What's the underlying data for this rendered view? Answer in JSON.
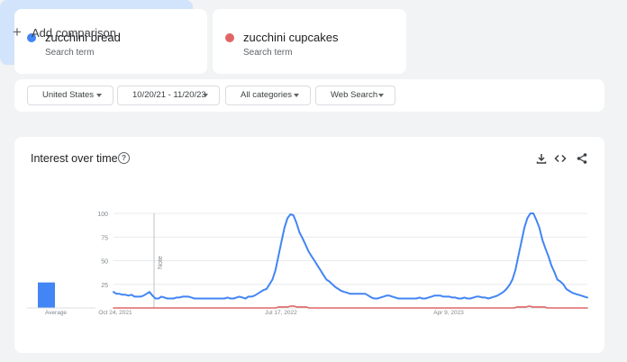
{
  "terms": [
    {
      "name": "zucchini bread",
      "sub": "Search term",
      "color": "#4285f4"
    },
    {
      "name": "zucchini cupcakes",
      "sub": "Search term",
      "color": "#db4437"
    }
  ],
  "add_comparison": {
    "icon": "plus-icon",
    "label": "Add comparison"
  },
  "filters": [
    {
      "label": "United States"
    },
    {
      "label": "10/20/21 - 11/20/23"
    },
    {
      "label": "All categories"
    },
    {
      "label": "Web Search"
    }
  ],
  "panel": {
    "title": "Interest over time",
    "help_icon": "help-icon",
    "tools": [
      "download-icon",
      "embed-icon",
      "share-icon"
    ]
  },
  "chart_data": {
    "type": "line",
    "y_ticks": [
      100,
      75,
      50,
      25
    ],
    "ylim": [
      0,
      100
    ],
    "x_labels": [
      "Oct 24, 2021",
      "Jul 17, 2022",
      "Apr 9, 2023"
    ],
    "note_label": "Note",
    "average_label": "Average",
    "average_values": [
      {
        "term": "zucchini bread",
        "value": 27
      }
    ],
    "grid": true,
    "series": [
      {
        "name": "zucchini bread",
        "color": "#4285f4",
        "values": [
          17,
          15,
          15,
          14,
          14,
          13,
          14,
          12,
          12,
          12,
          13,
          15,
          17,
          13,
          10,
          10,
          12,
          11,
          10,
          10,
          10,
          11,
          11,
          12,
          12,
          12,
          11,
          10,
          10,
          10,
          10,
          10,
          10,
          10,
          10,
          10,
          10,
          10,
          11,
          10,
          10,
          11,
          12,
          11,
          10,
          12,
          12,
          13,
          15,
          17,
          19,
          20,
          25,
          30,
          40,
          55,
          70,
          85,
          95,
          99,
          98,
          90,
          80,
          74,
          67,
          60,
          55,
          50,
          45,
          40,
          35,
          30,
          28,
          25,
          22,
          20,
          18,
          17,
          16,
          15,
          15,
          15,
          15,
          15,
          15,
          13,
          11,
          10,
          10,
          11,
          12,
          13,
          13,
          12,
          11,
          10,
          10,
          10,
          10,
          10,
          10,
          10,
          11,
          10,
          10,
          11,
          12,
          13,
          13,
          13,
          12,
          12,
          12,
          11,
          11,
          10,
          10,
          11,
          10,
          10,
          11,
          12,
          12,
          11,
          11,
          10,
          11,
          12,
          13,
          15,
          17,
          20,
          24,
          30,
          40,
          55,
          70,
          85,
          95,
          100,
          100,
          93,
          85,
          72,
          63,
          55,
          45,
          38,
          30,
          28,
          25,
          20,
          18,
          16,
          15,
          14,
          13,
          12,
          11
        ]
      },
      {
        "name": "zucchini cupcakes",
        "color": "#db4437",
        "values": [
          0,
          0,
          0,
          0,
          0,
          0,
          0,
          0,
          0,
          0,
          0,
          0,
          0,
          0,
          0,
          0,
          0,
          0,
          0,
          0,
          0,
          0,
          0,
          0,
          0,
          0,
          0,
          0,
          0,
          0,
          0,
          0,
          0,
          0,
          0,
          0,
          0,
          0,
          0,
          0,
          0,
          0,
          0,
          0,
          0,
          0,
          0,
          0,
          0,
          0,
          0,
          0,
          0,
          0,
          1,
          1,
          1,
          1,
          2,
          2,
          1,
          1,
          1,
          1,
          0,
          0,
          0,
          0,
          0,
          0,
          0,
          0,
          0,
          0,
          0,
          0,
          0,
          0,
          0,
          0,
          0,
          0,
          0,
          0,
          0,
          0,
          0,
          0,
          0,
          0,
          0,
          0,
          0,
          0,
          0,
          0,
          0,
          0,
          0,
          0,
          0,
          0,
          0,
          0,
          0,
          0,
          0,
          0,
          0,
          0,
          0,
          0,
          0,
          0,
          0,
          0,
          0,
          0,
          0,
          0,
          0,
          0,
          0,
          0,
          0,
          0,
          0,
          0,
          0,
          0,
          0,
          0,
          1,
          1,
          1,
          1,
          2,
          1,
          1,
          1,
          1,
          1,
          0,
          0,
          0,
          0,
          0,
          0,
          0,
          0,
          0,
          0,
          0,
          0,
          0,
          0
        ]
      }
    ]
  }
}
